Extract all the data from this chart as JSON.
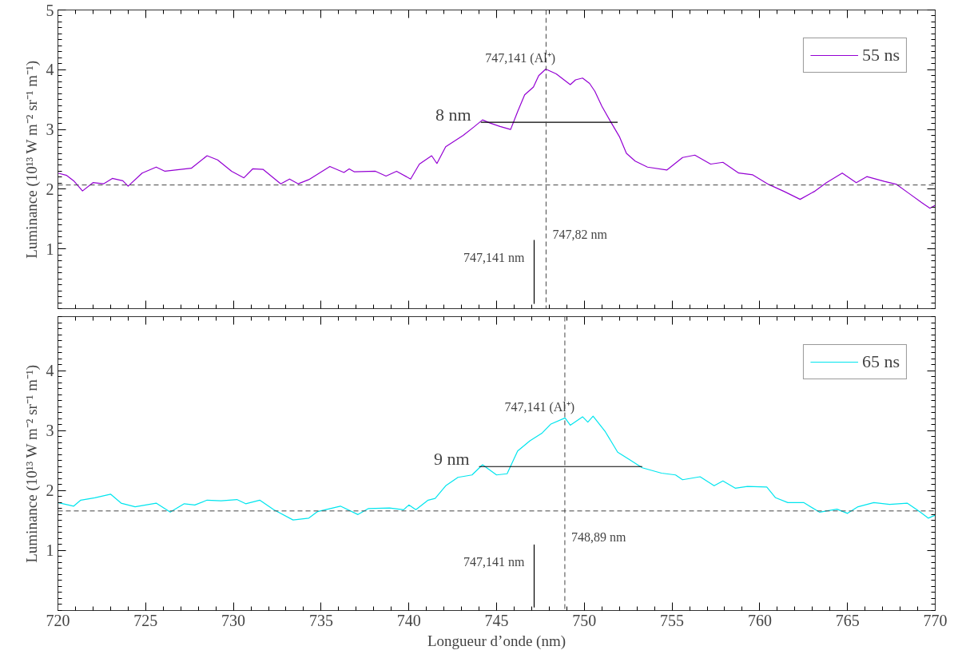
{
  "chart_data": [
    {
      "type": "line",
      "xlim": [
        720,
        770
      ],
      "xticks": [
        720,
        725,
        730,
        735,
        740,
        745,
        750,
        755,
        760,
        765,
        770
      ],
      "ylim": [
        0,
        5
      ],
      "yticks": [
        1,
        2,
        3,
        4,
        5
      ],
      "ylabel": "Luminance (10¹³ W m⁻² sr⁻¹ m⁻¹)",
      "tick_labels": "y",
      "grid": false,
      "legend": "top right",
      "series": [
        {
          "name": "55 ns",
          "color": "#9400d3",
          "x": [
            720,
            720.5,
            720.9,
            721.4,
            722.0,
            722.6,
            723.1,
            723.7,
            724.0,
            724.8,
            725.6,
            726.1,
            727.0,
            727.6,
            728.5,
            729.1,
            729.9,
            730.6,
            731.1,
            731.7,
            732.7,
            733.2,
            733.7,
            734.3,
            735.5,
            736.3,
            736.6,
            736.9,
            738.1,
            738.7,
            739.3,
            740.1,
            740.6,
            741.3,
            741.6,
            742.1,
            743.1,
            743.7,
            744.2,
            744.6,
            745.2,
            745.8,
            746.2,
            746.6,
            747.1,
            747.4,
            747.8,
            748.4,
            749.2,
            749.5,
            749.9,
            750.3,
            750.6,
            751.0,
            751.5,
            752.0,
            752.4,
            752.9,
            753.6,
            754.7,
            755.6,
            756.3,
            757.2,
            757.9,
            758.8,
            759.6,
            760.5,
            761.4,
            762.3,
            763.1,
            763.8,
            764.7,
            765.5,
            766.1,
            767.1,
            767.8,
            768.5,
            769.2,
            769.7,
            770.0
          ],
          "values": [
            2.27,
            2.23,
            2.14,
            1.97,
            2.11,
            2.09,
            2.18,
            2.14,
            2.05,
            2.27,
            2.37,
            2.3,
            2.33,
            2.35,
            2.56,
            2.49,
            2.3,
            2.19,
            2.34,
            2.33,
            2.09,
            2.17,
            2.09,
            2.16,
            2.38,
            2.28,
            2.34,
            2.29,
            2.3,
            2.22,
            2.3,
            2.17,
            2.42,
            2.56,
            2.43,
            2.71,
            2.9,
            3.04,
            3.16,
            3.11,
            3.05,
            3.0,
            3.3,
            3.58,
            3.71,
            3.9,
            4.01,
            3.93,
            3.75,
            3.83,
            3.86,
            3.77,
            3.64,
            3.39,
            3.13,
            2.88,
            2.6,
            2.47,
            2.37,
            2.32,
            2.53,
            2.57,
            2.42,
            2.45,
            2.27,
            2.24,
            2.08,
            1.96,
            1.83,
            1.96,
            2.11,
            2.27,
            2.11,
            2.21,
            2.13,
            2.08,
            1.93,
            1.78,
            1.68,
            1.73
          ]
        },
        {
          "color": "#000000",
          "x": [
            744.1,
            751.9
          ],
          "values": [
            3.12,
            3.12
          ]
        },
        {
          "color": "#000000",
          "x": [
            747.141,
            747.141
          ],
          "values": [
            1.15,
            0.08
          ]
        }
      ],
      "ref_lines": [
        {
          "axis": "y",
          "value": 2.07,
          "color": "#444444",
          "line_style": "dashed"
        },
        {
          "axis": "x",
          "value": 747.82,
          "color": "#444444",
          "line_style": "dashed",
          "label": "747,82 nm"
        }
      ],
      "annotations": [
        {
          "text": "747,141 (Al⁺)",
          "x": 747.8,
          "y": 4.01
        },
        {
          "text": "8 nm",
          "x": 744.1,
          "y": 3.12
        },
        {
          "text": "747,141 nm",
          "x": 747.141,
          "y": 1.15
        }
      ]
    },
    {
      "type": "line",
      "xlim": [
        720,
        770
      ],
      "xticks": [
        720,
        725,
        730,
        735,
        740,
        745,
        750,
        755,
        760,
        765,
        770
      ],
      "ylim": [
        0,
        4.9
      ],
      "yticks": [
        1,
        2,
        3,
        4
      ],
      "xlabel": "Longueur d’onde (nm)",
      "ylabel": "Luminance (10¹³ W m⁻² sr⁻¹ m⁻¹)",
      "grid": false,
      "legend": "top right",
      "series": [
        {
          "name": "65 ns",
          "color": "#00e5ee",
          "x": [
            720,
            720.9,
            721.3,
            722.1,
            723.0,
            723.6,
            724.4,
            725.6,
            726.4,
            727.2,
            727.8,
            728.5,
            729.3,
            730.2,
            730.7,
            731.5,
            732.3,
            733.4,
            734.3,
            734.8,
            736.1,
            737.1,
            737.7,
            738.9,
            739.7,
            740.0,
            740.4,
            741.1,
            741.5,
            742.1,
            742.8,
            743.6,
            744.2,
            745.0,
            745.6,
            746.2,
            746.9,
            747.6,
            748.1,
            748.9,
            749.2,
            749.9,
            750.2,
            750.5,
            751.2,
            751.9,
            752.5,
            753.3,
            754.4,
            755.2,
            755.6,
            756.6,
            757.4,
            757.9,
            758.6,
            759.3,
            760.4,
            760.9,
            761.6,
            762.5,
            763.4,
            764.4,
            765.0,
            765.6,
            766.5,
            767.4,
            768.4,
            769.1,
            769.6,
            770.0
          ],
          "values": [
            1.8,
            1.74,
            1.84,
            1.88,
            1.94,
            1.79,
            1.73,
            1.79,
            1.64,
            1.78,
            1.76,
            1.84,
            1.83,
            1.85,
            1.78,
            1.84,
            1.68,
            1.51,
            1.54,
            1.65,
            1.74,
            1.6,
            1.7,
            1.71,
            1.68,
            1.76,
            1.68,
            1.84,
            1.87,
            2.08,
            2.22,
            2.26,
            2.43,
            2.26,
            2.28,
            2.66,
            2.83,
            2.96,
            3.11,
            3.21,
            3.09,
            3.23,
            3.14,
            3.24,
            2.98,
            2.64,
            2.53,
            2.38,
            2.29,
            2.26,
            2.18,
            2.23,
            2.08,
            2.16,
            2.04,
            2.07,
            2.06,
            1.88,
            1.8,
            1.8,
            1.64,
            1.69,
            1.62,
            1.73,
            1.8,
            1.77,
            1.79,
            1.65,
            1.54,
            1.59
          ]
        },
        {
          "color": "#000000",
          "x": [
            744.0,
            753.3
          ],
          "values": [
            2.4,
            2.4
          ]
        },
        {
          "color": "#000000",
          "x": [
            747.141,
            747.141
          ],
          "values": [
            1.1,
            0.05
          ]
        }
      ],
      "ref_lines": [
        {
          "axis": "y",
          "value": 1.66,
          "color": "#444444",
          "line_style": "dashed"
        },
        {
          "axis": "x",
          "value": 748.89,
          "color": "#444444",
          "line_style": "dashed",
          "label": "748,89 nm"
        }
      ],
      "annotations": [
        {
          "text": "747,141 (Al⁺)",
          "x": 748.9,
          "y": 3.21
        },
        {
          "text": "9 nm",
          "x": 744.0,
          "y": 2.4
        },
        {
          "text": "747,141 nm",
          "x": 747.141,
          "y": 1.1
        }
      ]
    }
  ]
}
